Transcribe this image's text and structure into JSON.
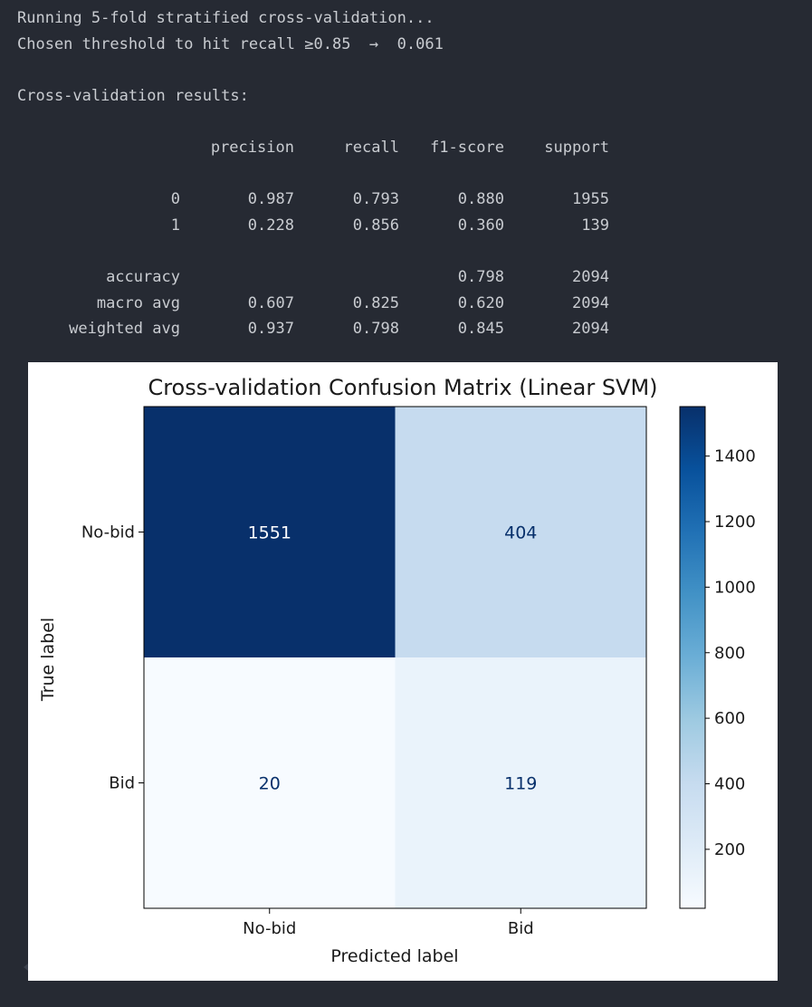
{
  "console": {
    "status_lines": [
      "Running 5-fold stratified cross-validation...",
      "Chosen threshold to hit recall ≥0.85  →  0.061"
    ],
    "report_title": "Cross-validation results:",
    "headers": [
      "",
      "precision",
      "recall",
      "f1-score",
      "support"
    ],
    "rows": [
      [
        "0",
        "0.987",
        "0.793",
        "0.880",
        "1955"
      ],
      [
        "1",
        "0.228",
        "0.856",
        "0.360",
        "139"
      ]
    ],
    "summary_rows": [
      [
        "accuracy",
        "",
        "",
        "0.798",
        "2094"
      ],
      [
        "macro avg",
        "0.607",
        "0.825",
        "0.620",
        "2094"
      ],
      [
        "weighted avg",
        "0.937",
        "0.798",
        "0.845",
        "2094"
      ]
    ]
  },
  "chart_data": {
    "type": "heatmap",
    "title": "Cross-validation Confusion Matrix (Linear SVM)",
    "xlabel": "Predicted label",
    "ylabel": "True label",
    "x_categories": [
      "No-bid",
      "Bid"
    ],
    "y_categories": [
      "No-bid",
      "Bid"
    ],
    "values": [
      [
        1551,
        404
      ],
      [
        20,
        119
      ]
    ],
    "colormap": "Blues",
    "colorbar": {
      "ticks": [
        200,
        400,
        600,
        800,
        1000,
        1200,
        1400
      ],
      "range": [
        20,
        1551
      ]
    }
  }
}
